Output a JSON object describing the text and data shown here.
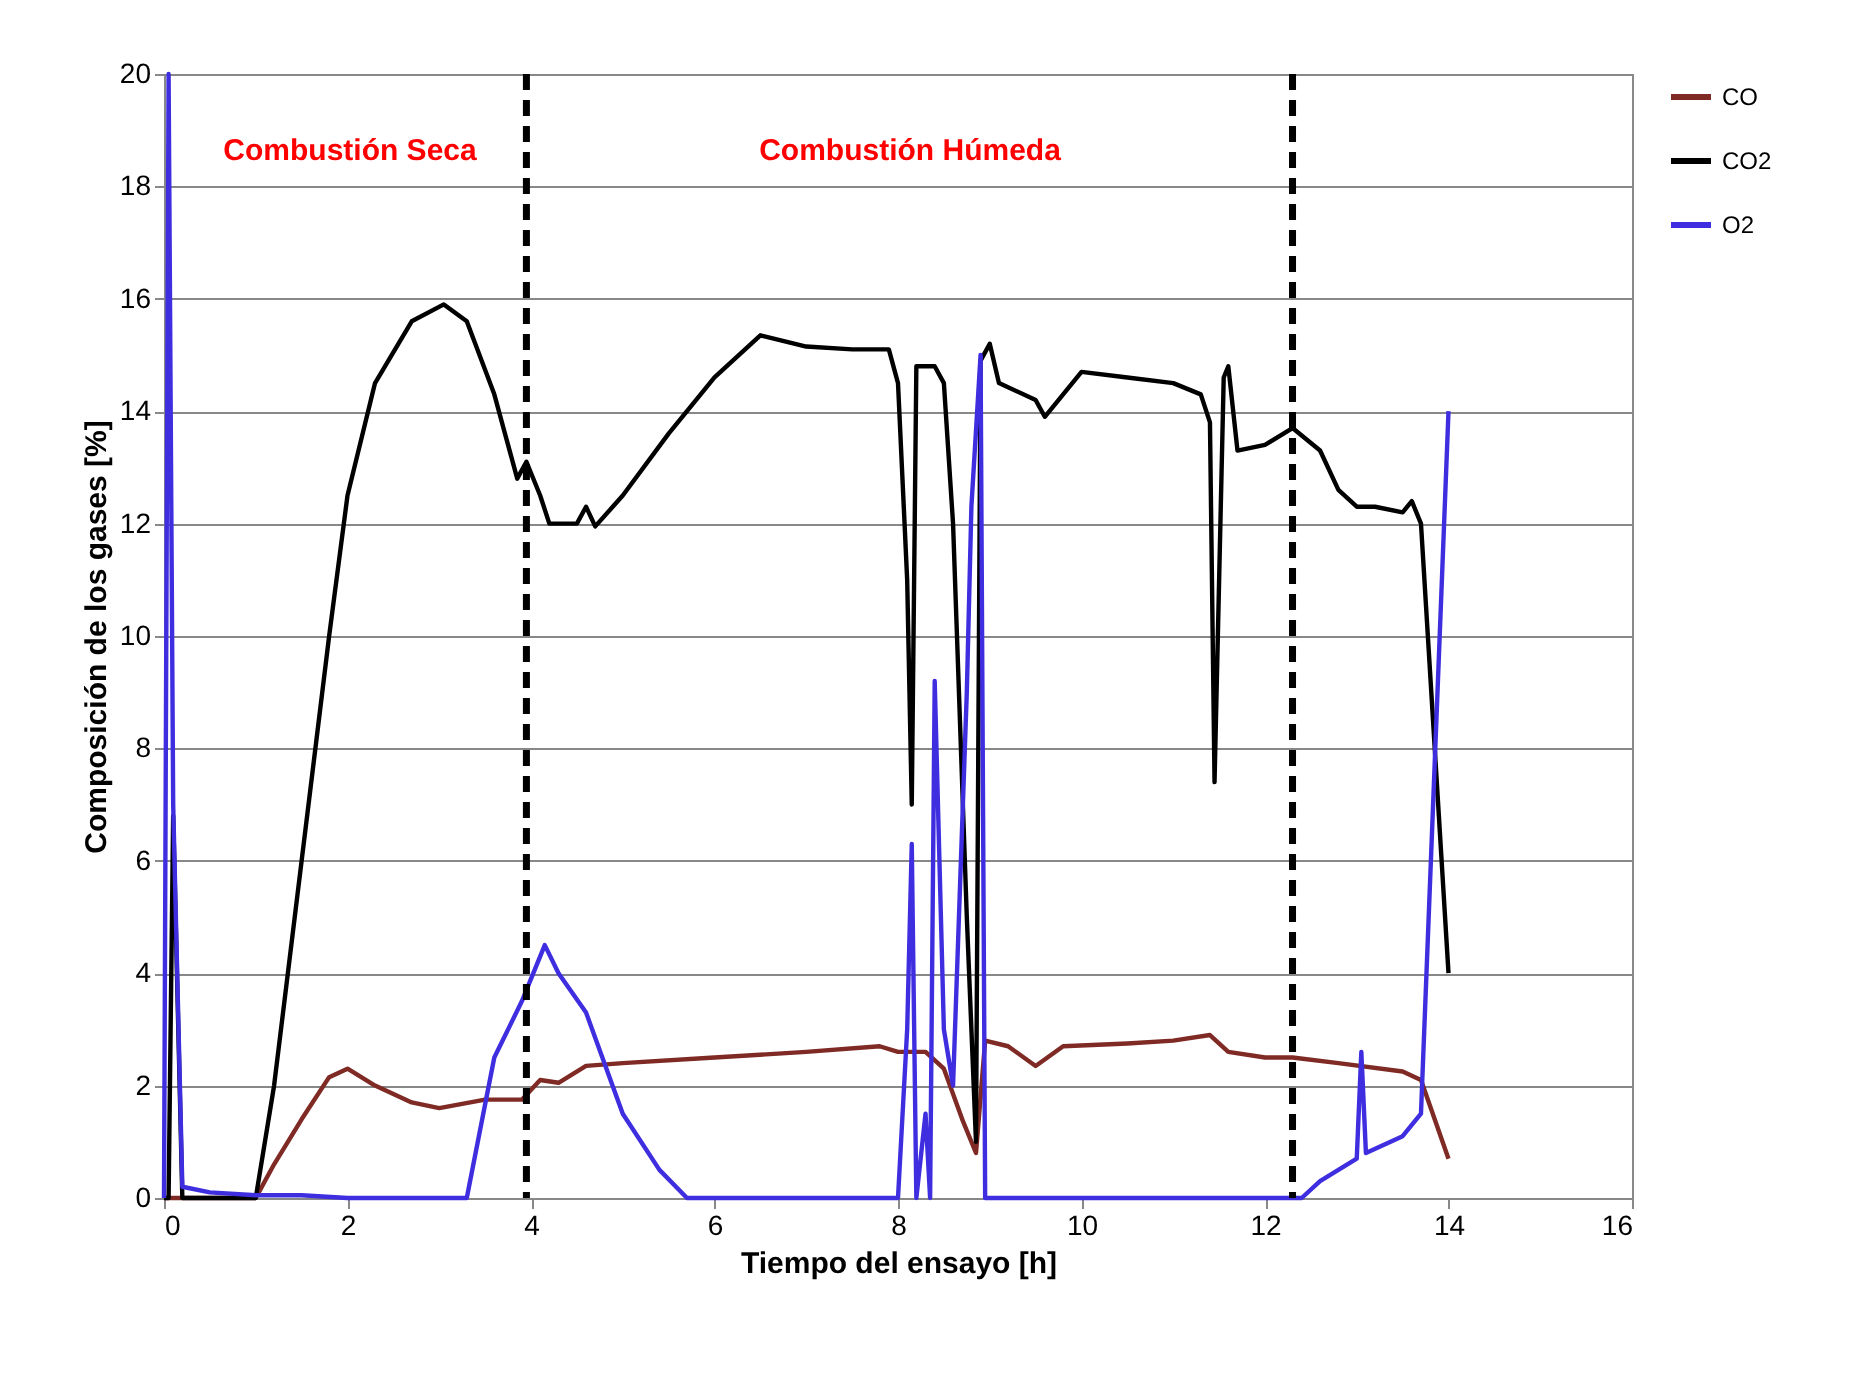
{
  "chart_data": {
    "type": "line",
    "xlabel": "Tiempo del ensayo [h]",
    "ylabel": "Composición de los gases [%]",
    "xlim": [
      0,
      16
    ],
    "xticks": [
      0,
      2,
      4,
      6,
      8,
      10,
      12,
      14,
      16
    ],
    "ylim": [
      0,
      20
    ],
    "yticks": [
      0,
      2,
      4,
      6,
      8,
      10,
      12,
      14,
      16,
      18,
      20
    ],
    "grid": "y",
    "legend": "right",
    "line_style": "solid",
    "marker": "none",
    "annotations": [
      "Combustión Seca",
      "Combustión Húmeda"
    ],
    "ref_lines": [
      {
        "axis": "x",
        "value": 3.95,
        "label": null,
        "color": "#000000",
        "line_style": "dashed"
      },
      {
        "axis": "x",
        "value": 12.3,
        "label": null,
        "color": "#000000",
        "line_style": "dashed"
      }
    ],
    "series": [
      {
        "name": "CO",
        "color": "#7f2a24",
        "x": [
          0,
          1.0,
          1.2,
          1.5,
          1.8,
          2.0,
          2.3,
          2.7,
          3.0,
          3.5,
          3.9,
          4.1,
          4.3,
          4.6,
          5.0,
          6.0,
          7.0,
          7.8,
          8.0,
          8.3,
          8.5,
          8.7,
          8.85,
          8.95,
          9.2,
          9.5,
          9.8,
          10.5,
          11.0,
          11.4,
          11.6,
          12.0,
          12.3,
          12.8,
          13.5,
          13.7,
          14.0
        ],
        "values": [
          0,
          0,
          0.6,
          1.4,
          2.15,
          2.3,
          2.0,
          1.7,
          1.6,
          1.75,
          1.75,
          2.1,
          2.05,
          2.35,
          2.4,
          2.5,
          2.6,
          2.7,
          2.6,
          2.6,
          2.3,
          1.4,
          0.8,
          2.8,
          2.7,
          2.35,
          2.7,
          2.75,
          2.8,
          2.9,
          2.6,
          2.5,
          2.5,
          2.4,
          2.25,
          2.1,
          0.7
        ]
      },
      {
        "name": "CO2",
        "color": "#000000",
        "x": [
          0,
          0.05,
          0.1,
          0.2,
          1.0,
          1.2,
          1.5,
          1.8,
          2.0,
          2.3,
          2.7,
          3.05,
          3.3,
          3.6,
          3.85,
          3.95,
          4.1,
          4.2,
          4.5,
          4.6,
          4.7,
          5.0,
          5.5,
          6.0,
          6.5,
          7.0,
          7.5,
          7.9,
          8.0,
          8.1,
          8.15,
          8.2,
          8.4,
          8.5,
          8.6,
          8.75,
          8.85,
          8.9,
          9.0,
          9.1,
          9.5,
          9.6,
          10.0,
          10.5,
          11.0,
          11.3,
          11.4,
          11.45,
          11.55,
          11.6,
          11.7,
          12.0,
          12.3,
          12.6,
          12.8,
          13.0,
          13.2,
          13.5,
          13.6,
          13.7,
          14.0
        ],
        "values": [
          0,
          0,
          6.8,
          0,
          0,
          2,
          6,
          10,
          12.5,
          14.5,
          15.6,
          15.9,
          15.6,
          14.3,
          12.8,
          13.1,
          12.5,
          12.0,
          12.0,
          12.3,
          11.95,
          12.5,
          13.6,
          14.6,
          15.35,
          15.15,
          15.1,
          15.1,
          14.5,
          11,
          7,
          14.8,
          14.8,
          14.5,
          12,
          5,
          1.0,
          14.9,
          15.2,
          14.5,
          14.2,
          13.9,
          14.7,
          14.6,
          14.5,
          14.3,
          13.8,
          7.4,
          14.6,
          14.8,
          13.3,
          13.4,
          13.7,
          13.3,
          12.6,
          12.3,
          12.3,
          12.2,
          12.4,
          12.0,
          4.0
        ]
      },
      {
        "name": "O2",
        "color": "#3f2ee0",
        "x": [
          0,
          0.05,
          0.1,
          0.2,
          0.5,
          1.0,
          1.5,
          2.0,
          3.3,
          3.6,
          3.9,
          4.1,
          4.15,
          4.3,
          4.6,
          5.0,
          5.4,
          5.7,
          8.0,
          8.1,
          8.15,
          8.2,
          8.3,
          8.35,
          8.4,
          8.5,
          8.6,
          8.75,
          8.8,
          8.9,
          8.95,
          12.4,
          12.6,
          13.0,
          13.05,
          13.1,
          13.5,
          13.7,
          14.0
        ],
        "values": [
          0,
          20,
          7,
          0.2,
          0.1,
          0.05,
          0.05,
          0,
          0,
          2.5,
          3.5,
          4.3,
          4.5,
          4.0,
          3.3,
          1.5,
          0.5,
          0,
          0,
          3,
          6.3,
          0,
          1.5,
          0,
          9.2,
          3,
          2,
          9,
          12.3,
          15.0,
          0,
          0,
          0.3,
          0.7,
          2.6,
          0.8,
          1.1,
          1.5,
          14.0
        ]
      }
    ]
  }
}
